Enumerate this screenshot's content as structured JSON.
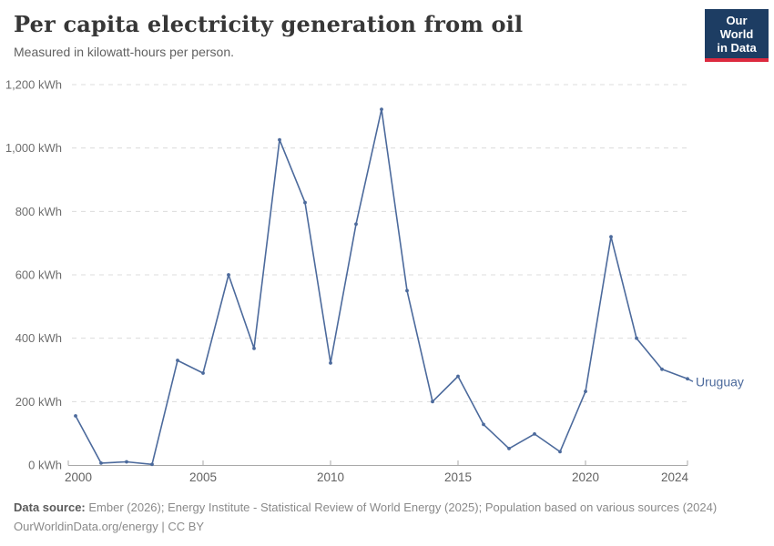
{
  "header": {
    "title": "Per capita electricity generation from oil",
    "subtitle": "Measured in kilowatt-hours per person.",
    "logo": {
      "line1": "Our World",
      "line2": "in Data",
      "bg_color": "#1d3d63",
      "accent_color": "#dc2a3f"
    }
  },
  "chart_data": {
    "type": "line",
    "title": "Per capita electricity generation from oil",
    "subtitle": "Measured in kilowatt-hours per person.",
    "xlabel": "",
    "ylabel": "",
    "xlim": [
      2000,
      2024
    ],
    "ylim": [
      0,
      1200
    ],
    "grid": "horizontal dashed",
    "legend_position": "end-of-line label",
    "unit": "kWh",
    "series": [
      {
        "name": "Uruguay",
        "color": "#4c6a9c",
        "x": [
          2000,
          2001,
          2002,
          2003,
          2004,
          2005,
          2006,
          2007,
          2008,
          2009,
          2010,
          2011,
          2012,
          2013,
          2014,
          2015,
          2016,
          2017,
          2018,
          2019,
          2020,
          2021,
          2022,
          2023,
          2024
        ],
        "values": [
          155,
          6,
          10,
          2,
          330,
          290,
          600,
          368,
          1026,
          828,
          322,
          760,
          1122,
          550,
          200,
          280,
          128,
          52,
          98,
          42,
          232,
          720,
          400,
          302,
          272
        ]
      }
    ],
    "end_label": "Uruguay",
    "x_ticks": [
      {
        "year": 2000,
        "label": "2000"
      },
      {
        "year": 2005,
        "label": "2005"
      },
      {
        "year": 2010,
        "label": "2010"
      },
      {
        "year": 2015,
        "label": "2015"
      },
      {
        "year": 2020,
        "label": "2020"
      },
      {
        "year": 2024,
        "label": "2024"
      }
    ],
    "y_ticks": [
      {
        "value": 0,
        "label": "0 kWh"
      },
      {
        "value": 200,
        "label": "200 kWh"
      },
      {
        "value": 400,
        "label": "400 kWh"
      },
      {
        "value": 600,
        "label": "600 kWh"
      },
      {
        "value": 800,
        "label": "800 kWh"
      },
      {
        "value": 1000,
        "label": "1,000 kWh"
      },
      {
        "value": 1200,
        "label": "1,200 kWh"
      }
    ]
  },
  "footer": {
    "source_label": "Data source:",
    "source_text": "Ember (2026); Energy Institute - Statistical Review of World Energy (2025); Population based on various sources (2024)",
    "link_line": "OurWorldinData.org/energy | CC BY"
  }
}
